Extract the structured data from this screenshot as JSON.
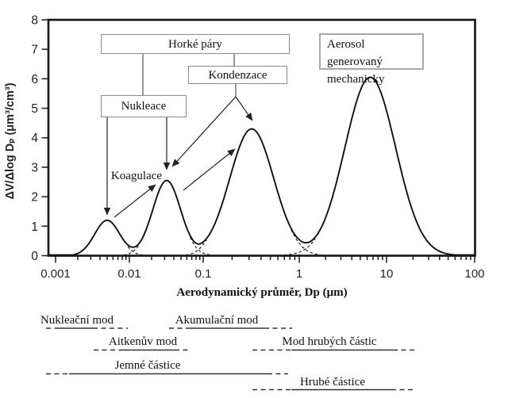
{
  "chart_data": {
    "type": "line",
    "title": "",
    "xlabel": "Aerodynamický průměr, Dp (μm)",
    "ylabel": "ΔV/Δlog Dₚ (μm³/cm³)",
    "x_scale": "log",
    "xlim": [
      0.001,
      100
    ],
    "ylim": [
      0,
      8
    ],
    "grid": false,
    "x_tick_labels": [
      "0.001",
      "0.01",
      "0.1",
      "1",
      "10",
      "100"
    ],
    "y_tick_labels": [
      "0",
      "1",
      "2",
      "3",
      "4",
      "5",
      "6",
      "7",
      "8"
    ],
    "curve_description": "Aerosol volume size distribution drawn as the sum of four log-normal modes; dashed segments show the individual mode tails crossing in the valleys between peaks",
    "modes": [
      {
        "name": "Nukleační mod",
        "peak_dp_um": 0.005,
        "peak_height_um3_cm3": 1.2,
        "sigma_decades": 0.17
      },
      {
        "name": "Aitkenův mod",
        "peak_dp_um": 0.032,
        "peak_height_um3_cm3": 2.55,
        "sigma_decades": 0.19
      },
      {
        "name": "Akumulační mod",
        "peak_dp_um": 0.32,
        "peak_height_um3_cm3": 4.3,
        "sigma_decades": 0.23
      },
      {
        "name": "Mod hrubých částic",
        "peak_dp_um": 6.5,
        "peak_height_um3_cm3": 6.05,
        "sigma_decades": 0.29
      }
    ]
  },
  "annotations": {
    "horke_pary": "Horké páry",
    "kondenzace": "Kondenzace",
    "nukleace": "Nukleace",
    "koagulace": "Koagulace",
    "aerosol_mechanicky": "Aerosol generovaný mechanicky"
  },
  "mode_ranges": {
    "nukleacni": "Nukleační mod",
    "akumulacni": "Akumulační mod",
    "aitkenuv": "Aitkenův mod",
    "hrubych": "Mod hrubých částic",
    "jemne": "Jemné částice",
    "hrube": "Hrubé částice"
  }
}
